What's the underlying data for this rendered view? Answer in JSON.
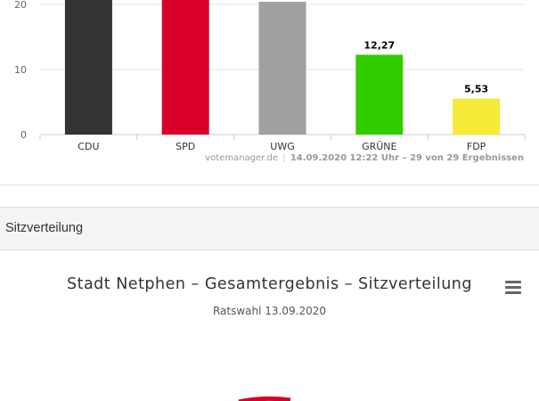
{
  "chart_data": [
    {
      "type": "bar",
      "categories": [
        "CDU",
        "SPD",
        "UWG",
        "GRÜNE",
        "FDP"
      ],
      "values": [
        null,
        null,
        null,
        12.27,
        5.53
      ],
      "data_labels": [
        "",
        "",
        "",
        "12,27",
        "5,53"
      ],
      "colors": [
        "#333333",
        "#d8002a",
        "#a0a0a0",
        "#33cc00",
        "#f5eb38"
      ],
      "yticks": [
        "0",
        "10",
        "20"
      ],
      "title": "",
      "xlabel": "",
      "ylabel": "",
      "grid": true
    }
  ],
  "credits": {
    "source": "votemanager.de",
    "separator": "|",
    "timestamp": "14.09.2020 12:22 Uhr – 29 von 29 Ergebnissen"
  },
  "section": {
    "heading": "Sitzverteilung"
  },
  "seat_chart": {
    "title": "Stadt Netphen – Gesamtergebnis – Sitzverteilung",
    "subtitle": "Ratswahl 13.09.2020",
    "visible_segment_color": "#d8002a"
  },
  "menu": {
    "icon": "hamburger-menu-icon"
  }
}
